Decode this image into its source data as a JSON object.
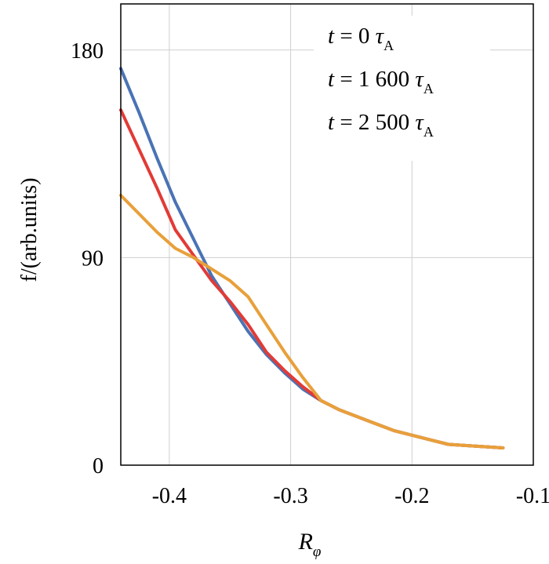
{
  "chart_data": {
    "type": "line",
    "title": "",
    "xlabel": {
      "main": "R",
      "sub": "φ"
    },
    "ylabel": "f/(arb.units)",
    "xlim": [
      -0.44,
      -0.1
    ],
    "ylim": [
      0,
      200
    ],
    "grid": true,
    "x_ticks": [
      {
        "value": -0.4,
        "label": "-0.4"
      },
      {
        "value": -0.3,
        "label": "-0.3"
      },
      {
        "value": -0.2,
        "label": "-0.2"
      },
      {
        "value": -0.1,
        "label": "-0.1"
      }
    ],
    "y_ticks": [
      {
        "value": 0,
        "label": "0"
      },
      {
        "value": 90,
        "label": "90"
      },
      {
        "value": 180,
        "label": "180"
      }
    ],
    "legend": {
      "placement": "top-right",
      "entries": [
        {
          "pre": "t = 0 τ",
          "sub": "A"
        },
        {
          "pre": "t = 1 600 τ",
          "sub": "A"
        },
        {
          "pre": "t = 2 500 τ",
          "sub": "A"
        }
      ]
    },
    "series": [
      {
        "color": "#4a73b5",
        "points": [
          [
            -0.44,
            172
          ],
          [
            -0.425,
            153
          ],
          [
            -0.41,
            133
          ],
          [
            -0.395,
            114
          ],
          [
            -0.38,
            98
          ],
          [
            -0.365,
            82
          ],
          [
            -0.35,
            70
          ],
          [
            -0.335,
            58
          ],
          [
            -0.32,
            48
          ],
          [
            -0.305,
            40
          ],
          [
            -0.29,
            33
          ],
          [
            -0.275,
            28
          ],
          [
            -0.26,
            24
          ],
          [
            -0.245,
            21
          ],
          [
            -0.23,
            18
          ],
          [
            -0.215,
            15
          ],
          [
            -0.2,
            13
          ],
          [
            -0.185,
            11
          ],
          [
            -0.17,
            9
          ],
          [
            -0.155,
            8.5
          ],
          [
            -0.14,
            8
          ],
          [
            -0.125,
            7.5
          ]
        ]
      },
      {
        "color": "#e23a36",
        "points": [
          [
            -0.44,
            154
          ],
          [
            -0.425,
            137
          ],
          [
            -0.41,
            120
          ],
          [
            -0.395,
            102
          ],
          [
            -0.38,
            91
          ],
          [
            -0.365,
            80
          ],
          [
            -0.35,
            71
          ],
          [
            -0.335,
            61
          ],
          [
            -0.32,
            49
          ],
          [
            -0.305,
            41
          ],
          [
            -0.29,
            34
          ],
          [
            -0.275,
            28
          ],
          [
            -0.26,
            24
          ],
          [
            -0.245,
            21
          ],
          [
            -0.23,
            18
          ],
          [
            -0.215,
            15
          ],
          [
            -0.2,
            13
          ],
          [
            -0.185,
            11
          ],
          [
            -0.17,
            9
          ],
          [
            -0.155,
            8.5
          ],
          [
            -0.14,
            8
          ],
          [
            -0.125,
            7.5
          ]
        ]
      },
      {
        "color": "#e8a03a",
        "points": [
          [
            -0.44,
            117
          ],
          [
            -0.425,
            109
          ],
          [
            -0.41,
            101
          ],
          [
            -0.395,
            94
          ],
          [
            -0.38,
            90
          ],
          [
            -0.365,
            85
          ],
          [
            -0.35,
            80
          ],
          [
            -0.335,
            73
          ],
          [
            -0.32,
            61
          ],
          [
            -0.305,
            49
          ],
          [
            -0.29,
            38
          ],
          [
            -0.275,
            28
          ],
          [
            -0.26,
            24
          ],
          [
            -0.245,
            21
          ],
          [
            -0.23,
            18
          ],
          [
            -0.215,
            15
          ],
          [
            -0.2,
            13
          ],
          [
            -0.185,
            11
          ],
          [
            -0.17,
            9
          ],
          [
            -0.155,
            8.5
          ],
          [
            -0.14,
            8
          ],
          [
            -0.125,
            7.5
          ]
        ]
      }
    ]
  }
}
